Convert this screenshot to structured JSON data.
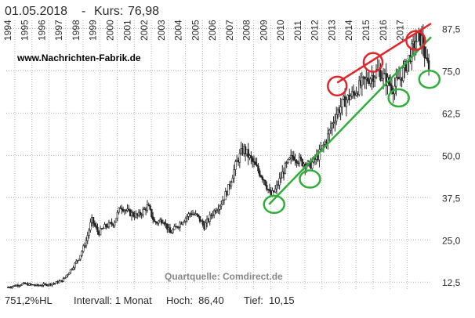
{
  "header": {
    "date": "01.05.2018",
    "separator": "-",
    "kurs_label": "Kurs:",
    "kurs_value": "76,98"
  },
  "watermark": "www.Nachrichten-Fabrik.de",
  "source_note": "Quartquelle: Comdirect.de",
  "footer": {
    "range": "751,2%HL",
    "interval": "Intervall: 1 Monat",
    "high": "Hoch:  86,40",
    "low": "Tief:  10,15"
  },
  "colors": {
    "price": "#222222",
    "grid": "#b4b4b4",
    "resistance": "#e0262a",
    "support": "#2fae3a",
    "text": "#2b2b2b",
    "source": "#888888"
  },
  "chart_data": {
    "type": "candlestick",
    "title": "",
    "xlabel": "",
    "ylabel": "",
    "x_tick_labels": [
      "1994",
      "1995",
      "1996",
      "1997",
      "1998",
      "1999",
      "2000",
      "2001",
      "2002",
      "2003",
      "2004",
      "2005",
      "2006",
      "2007",
      "2008",
      "2009",
      "2010",
      "2011",
      "2012",
      "2013",
      "2014",
      "2015",
      "2016",
      "2017"
    ],
    "y_tick_labels": [
      "12,5",
      "25,0",
      "37,5",
      "50,0",
      "62,5",
      "75,0",
      "87,5"
    ],
    "ylim": [
      10,
      89
    ],
    "xlim": [
      1993.5,
      2018.4
    ],
    "grid": true,
    "price_anchors": [
      [
        1993.6,
        11
      ],
      [
        1994.5,
        12
      ],
      [
        1995.3,
        11.5
      ],
      [
        1996.2,
        12
      ],
      [
        1996.8,
        13
      ],
      [
        1997.4,
        17
      ],
      [
        1997.8,
        20
      ],
      [
        1998.2,
        25
      ],
      [
        1998.5,
        31
      ],
      [
        1998.9,
        27
      ],
      [
        1999.3,
        29
      ],
      [
        1999.8,
        30
      ],
      [
        2000.2,
        35
      ],
      [
        2000.7,
        33
      ],
      [
        2001.2,
        32
      ],
      [
        2001.8,
        35
      ],
      [
        2002.2,
        30
      ],
      [
        2002.7,
        31
      ],
      [
        2003.1,
        27
      ],
      [
        2003.5,
        29
      ],
      [
        2003.9,
        31
      ],
      [
        2004.3,
        33
      ],
      [
        2004.7,
        32
      ],
      [
        2005.1,
        29
      ],
      [
        2005.6,
        33
      ],
      [
        2006.1,
        36
      ],
      [
        2006.5,
        40
      ],
      [
        2007.0,
        48
      ],
      [
        2007.4,
        52
      ],
      [
        2007.8,
        49
      ],
      [
        2008.2,
        46
      ],
      [
        2008.6,
        43
      ],
      [
        2009.0,
        38
      ],
      [
        2009.3,
        40
      ],
      [
        2009.8,
        46
      ],
      [
        2010.3,
        50
      ],
      [
        2010.8,
        48
      ],
      [
        2011.3,
        47
      ],
      [
        2011.8,
        50
      ],
      [
        2012.3,
        55
      ],
      [
        2012.8,
        62
      ],
      [
        2013.3,
        66
      ],
      [
        2013.8,
        68
      ],
      [
        2014.3,
        71
      ],
      [
        2014.8,
        73
      ],
      [
        2015.3,
        75
      ],
      [
        2015.8,
        72
      ],
      [
        2016.2,
        70
      ],
      [
        2016.7,
        74
      ],
      [
        2017.2,
        80
      ],
      [
        2017.6,
        85
      ],
      [
        2017.9,
        84
      ],
      [
        2018.1,
        77
      ],
      [
        2018.33,
        76.98
      ]
    ],
    "annotations": {
      "resistance_line": {
        "x": [
          2012.9,
          2018.4
        ],
        "y": [
          71.5,
          89
        ]
      },
      "support_line": {
        "x": [
          2008.9,
          2018.4
        ],
        "y": [
          35.5,
          85
        ]
      },
      "red_circles": [
        {
          "x": 2012.9,
          "y": 70.5
        },
        {
          "x": 2015.0,
          "y": 77.5
        },
        {
          "x": 2017.5,
          "y": 84
        }
      ],
      "green_circles": [
        {
          "x": 2009.2,
          "y": 35.5
        },
        {
          "x": 2011.3,
          "y": 43
        },
        {
          "x": 2016.5,
          "y": 67
        },
        {
          "x": 2018.3,
          "y": 72.5
        }
      ]
    }
  }
}
